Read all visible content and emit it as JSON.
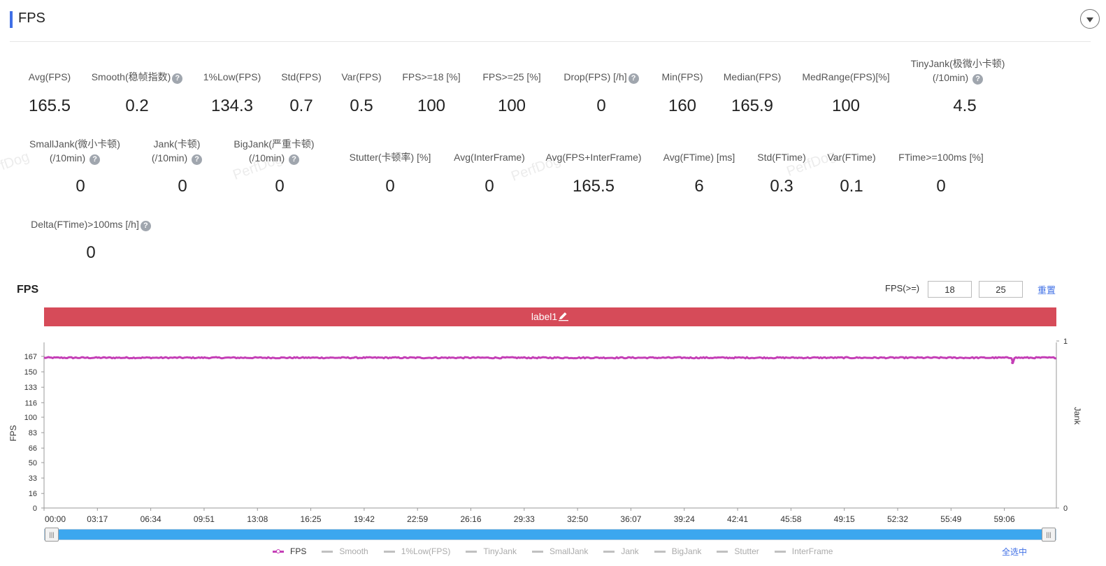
{
  "header": {
    "title": "FPS"
  },
  "metrics": [
    {
      "id": "avg-fps",
      "label": "Avg(FPS)",
      "value": "165.5"
    },
    {
      "id": "smooth",
      "label": "Smooth(稳帧指数)",
      "value": "0.2",
      "help": true
    },
    {
      "id": "low1-fps",
      "label": "1%Low(FPS)",
      "value": "134.3"
    },
    {
      "id": "std-fps",
      "label": "Std(FPS)",
      "value": "0.7"
    },
    {
      "id": "var-fps",
      "label": "Var(FPS)",
      "value": "0.5"
    },
    {
      "id": "fps18",
      "label": "FPS>=18 [%]",
      "value": "100"
    },
    {
      "id": "fps25",
      "label": "FPS>=25 [%]",
      "value": "100"
    },
    {
      "id": "drop-fps",
      "label": "Drop(FPS) [/h]",
      "value": "0",
      "help": true
    },
    {
      "id": "min-fps",
      "label": "Min(FPS)",
      "value": "160"
    },
    {
      "id": "median-fps",
      "label": "Median(FPS)",
      "value": "165.9"
    },
    {
      "id": "medrange-fps",
      "label": "MedRange(FPS)[%]",
      "value": "100"
    },
    {
      "id": "tinyjank",
      "label": "TinyJank(极微小卡顿)",
      "label2": "(/10min)",
      "value": "4.5",
      "help": true
    },
    {
      "id": "smalljank",
      "label": "SmallJank(微小卡顿)",
      "label2": "(/10min)",
      "value": "0",
      "help": true
    },
    {
      "id": "jank",
      "label": "Jank(卡顿)",
      "label2": "(/10min)",
      "value": "0",
      "help": true
    },
    {
      "id": "bigjank",
      "label": "BigJank(严重卡顿)",
      "label2": "(/10min)",
      "value": "0",
      "help": true
    },
    {
      "id": "stutter",
      "label": "Stutter(卡顿率) [%]",
      "value": "0"
    },
    {
      "id": "avg-interframe",
      "label": "Avg(InterFrame)",
      "value": "0"
    },
    {
      "id": "avg-fps-interframe",
      "label": "Avg(FPS+InterFrame)",
      "value": "165.5"
    },
    {
      "id": "avg-ftime",
      "label": "Avg(FTime) [ms]",
      "value": "6"
    },
    {
      "id": "std-ftime",
      "label": "Std(FTime)",
      "value": "0.3"
    },
    {
      "id": "var-ftime",
      "label": "Var(FTime)",
      "value": "0.1"
    },
    {
      "id": "ftime100",
      "label": "FTime>=100ms [%]",
      "value": "0"
    },
    {
      "id": "delta-ftime",
      "label": "Delta(FTime)>100ms [/h]",
      "value": "0",
      "help": true
    }
  ],
  "help_glyph": "?",
  "watermark": "PerfDog",
  "chart_section": {
    "title": "FPS",
    "threshold_label": "FPS(>=)",
    "threshold1": "18",
    "threshold2": "25",
    "reset_label": "重置",
    "label_bar": "label1",
    "edit_icon": "pencil-icon",
    "select_all": "全选中",
    "handle_glyph": "|||"
  },
  "chart_data": {
    "type": "line",
    "xlabel": "",
    "ylabel": "FPS",
    "y2label": "Jank",
    "ylim": [
      0,
      167
    ],
    "y2lim": [
      0,
      1
    ],
    "yticks": [
      "0",
      "16",
      "33",
      "50",
      "66",
      "83",
      "100",
      "116",
      "133",
      "150",
      "167"
    ],
    "y2ticks": [
      "0",
      "1"
    ],
    "xticks": [
      "00:00",
      "03:17",
      "06:34",
      "09:51",
      "13:08",
      "16:25",
      "19:42",
      "22:59",
      "26:16",
      "29:33",
      "32:50",
      "36:07",
      "39:24",
      "42:41",
      "45:58",
      "49:15",
      "52:32",
      "55:49",
      "59:06"
    ],
    "x_minutes_range": [
      0,
      62.3
    ],
    "series": [
      {
        "name": "FPS",
        "color": "#c43fb6",
        "baseline": 165.5,
        "jitter": 0.7,
        "dips": [
          {
            "x_minutes": 59.6,
            "value": 160
          }
        ]
      }
    ],
    "legend": [
      "FPS",
      "Smooth",
      "1%Low(FPS)",
      "TinyJank",
      "SmallJank",
      "Jank",
      "BigJank",
      "Stutter",
      "InterFrame"
    ],
    "legend_active": "FPS",
    "legend_position": "bottom"
  }
}
